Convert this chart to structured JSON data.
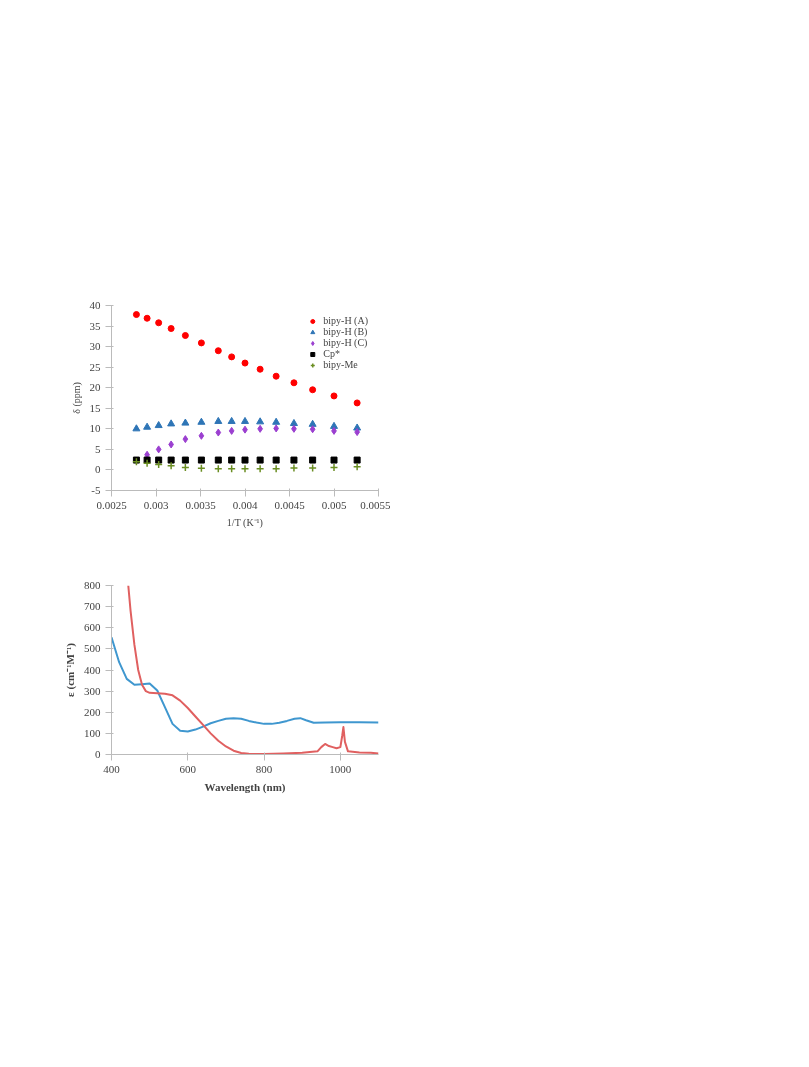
{
  "chart_data": [
    {
      "type": "scatter",
      "xlabel": "1/T (K⁻¹)",
      "ylabel": "δ (ppm)",
      "x": [
        0.00278,
        0.0029,
        0.00303,
        0.00317,
        0.00333,
        0.00351,
        0.0037,
        0.00385,
        0.004,
        0.00417,
        0.00435,
        0.00455,
        0.00476,
        0.005,
        0.00526
      ],
      "xlim": [
        0.0025,
        0.0055
      ],
      "xticks": [
        0.0025,
        0.003,
        0.0035,
        0.004,
        0.0045,
        0.005,
        0.0055
      ],
      "ylim": [
        -5,
        40
      ],
      "yticks": [
        -5,
        0,
        5,
        10,
        15,
        20,
        25,
        30,
        35,
        40
      ],
      "grid": false,
      "legend": "top right",
      "series": [
        {
          "name": "bipy-H (A)",
          "color": "#ff0000",
          "marker": "circle",
          "values": [
            37.8,
            36.9,
            35.8,
            34.4,
            32.7,
            30.9,
            29.0,
            27.5,
            26.0,
            24.5,
            22.8,
            21.2,
            19.5,
            18.0,
            16.3
          ]
        },
        {
          "name": "bipy-H (B)",
          "color": "#2e75b6",
          "marker": "triangle",
          "values": [
            10.0,
            10.4,
            10.8,
            11.2,
            11.4,
            11.6,
            11.8,
            11.8,
            11.8,
            11.7,
            11.6,
            11.3,
            11.1,
            10.6,
            10.2
          ]
        },
        {
          "name": "bipy-H (C)",
          "color": "#9b3fd0",
          "marker": "diamond",
          "values": [
            null,
            3.7,
            5.0,
            6.2,
            7.5,
            8.3,
            9.1,
            9.5,
            9.8,
            10.0,
            10.1,
            10.0,
            9.9,
            9.5,
            9.2
          ]
        },
        {
          "name": "Cp*",
          "color": "#000000",
          "marker": "square",
          "values": [
            2.4,
            2.4,
            2.4,
            2.4,
            2.4,
            2.4,
            2.4,
            2.4,
            2.4,
            2.4,
            2.4,
            2.4,
            2.4,
            2.4,
            2.4
          ]
        },
        {
          "name": "bipy-Me",
          "color": "#6b8e23",
          "marker": "cross",
          "values": [
            2.0,
            1.6,
            1.3,
            1.0,
            0.6,
            0.4,
            0.3,
            0.3,
            0.3,
            0.3,
            0.3,
            0.5,
            0.5,
            0.6,
            0.8
          ]
        }
      ]
    },
    {
      "type": "line",
      "xlabel": "Wavelength (nm)",
      "ylabel": "ε (cm⁻¹M⁻¹)",
      "xlim": [
        400,
        1100
      ],
      "xticks": [
        400,
        600,
        800,
        1000
      ],
      "ylim": [
        0,
        800
      ],
      "yticks": [
        0,
        100,
        200,
        300,
        400,
        500,
        600,
        700,
        800
      ],
      "grid": false,
      "series": [
        {
          "color": "#3f97cf",
          "x": [
            400,
            420,
            440,
            460,
            480,
            500,
            520,
            540,
            560,
            580,
            600,
            620,
            640,
            660,
            680,
            700,
            720,
            740,
            760,
            780,
            800,
            820,
            840,
            860,
            880,
            895,
            910,
            930,
            960,
            1000,
            1050,
            1100
          ],
          "values": [
            555,
            437,
            358,
            330,
            333,
            336,
            303,
            224,
            145,
            112,
            109,
            118,
            132,
            148,
            159,
            169,
            172,
            169,
            159,
            151,
            145,
            145,
            150,
            159,
            169,
            172,
            162,
            150,
            151,
            153,
            153,
            151
          ]
        },
        {
          "color": "#e06060",
          "x": [
            444,
            450,
            460,
            470,
            480,
            490,
            500,
            520,
            540,
            560,
            580,
            600,
            620,
            640,
            660,
            680,
            700,
            720,
            740,
            760,
            800,
            850,
            900,
            940,
            950,
            960,
            970,
            980,
            990,
            1000,
            1005,
            1008,
            1012,
            1020,
            1050,
            1080,
            1100
          ],
          "values": [
            800,
            680,
            520,
            400,
            330,
            300,
            292,
            290,
            288,
            280,
            255,
            220,
            180,
            140,
            100,
            65,
            38,
            18,
            7,
            3,
            2,
            5,
            8,
            15,
            35,
            50,
            40,
            35,
            30,
            35,
            90,
            130,
            60,
            15,
            10,
            8,
            5
          ]
        }
      ]
    }
  ]
}
